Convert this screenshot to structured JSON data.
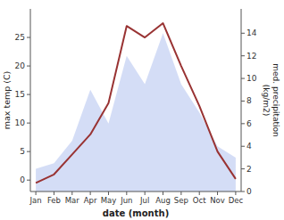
{
  "chart_data": {
    "type": "line",
    "xlabel": "date (month)",
    "ylabel": "max temp (C)",
    "y2label": "med. precipitation\n(kg/m2)",
    "categories": [
      "Jan",
      "Feb",
      "Mar",
      "Apr",
      "May",
      "Jun",
      "Jul",
      "Aug",
      "Sep",
      "Oct",
      "Nov",
      "Dec"
    ],
    "series": [
      {
        "type": "area",
        "axis": "y2",
        "color": "#aabbee",
        "values": [
          2.0,
          2.5,
          4.5,
          9.0,
          6.0,
          12.0,
          9.5,
          14.0,
          9.5,
          7.0,
          4.0,
          3.0
        ]
      },
      {
        "type": "line",
        "color": "#993333",
        "values": [
          -0.5,
          1.0,
          4.5,
          8.0,
          13.5,
          27.0,
          25.0,
          27.5,
          20.0,
          13.0,
          5.0,
          0.2
        ]
      }
    ],
    "ylim": [
      -2,
      30
    ],
    "yticks": [
      0,
      5,
      10,
      15,
      20,
      25
    ],
    "y2lim": [
      0,
      16.15
    ],
    "y2ticks": [
      0,
      2,
      4,
      6,
      8,
      10,
      12,
      14
    ]
  }
}
